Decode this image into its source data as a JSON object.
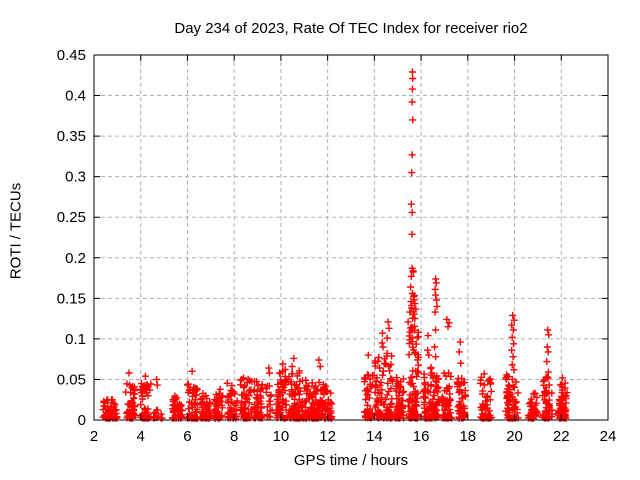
{
  "figure": {
    "background": "#ffffff"
  },
  "chart_data": {
    "type": "scatter",
    "title": "Day 234 of 2023, Rate Of TEC Index for receiver rio2",
    "xlabel": "GPS time / hours",
    "ylabel": "ROTI / TECUs",
    "xlim": [
      2,
      24
    ],
    "ylim": [
      0,
      0.45
    ],
    "xticks": [
      2,
      4,
      6,
      8,
      10,
      12,
      14,
      16,
      18,
      20,
      22,
      24
    ],
    "yticks": [
      0,
      0.05,
      0.1,
      0.15,
      0.2,
      0.25,
      0.3,
      0.35,
      0.4,
      0.45
    ],
    "ytick_labels": [
      "0",
      "0.05",
      "0.1",
      "0.15",
      "0.2",
      "0.25",
      "0.3",
      "0.35",
      "0.4",
      "0.45"
    ],
    "grid": "dashed",
    "grid_color": "#b0b0b0",
    "axis_color": "#000000",
    "legend": "none",
    "marker": {
      "glyph": "+",
      "color": "#ff0000",
      "size": 7,
      "stroke_width": 1.4
    },
    "clusters": [
      {
        "x0": 2.38,
        "x1": 2.98,
        "n": 55,
        "y_base": 0.002,
        "y_top": 0.026
      },
      {
        "x0": 3.36,
        "x1": 3.78,
        "n": 48,
        "y_base": 0.002,
        "y_top": 0.046
      },
      {
        "x0": 4.0,
        "x1": 4.43,
        "n": 48,
        "y_base": 0.002,
        "y_top": 0.046
      },
      {
        "x0": 4.56,
        "x1": 4.92,
        "n": 12,
        "y_base": 0.002,
        "y_top": 0.02
      },
      {
        "x0": 5.35,
        "x1": 5.78,
        "n": 42,
        "y_base": 0.002,
        "y_top": 0.03
      },
      {
        "x0": 6.0,
        "x1": 6.42,
        "n": 50,
        "y_base": 0.002,
        "y_top": 0.048
      },
      {
        "x0": 6.55,
        "x1": 6.99,
        "n": 42,
        "y_base": 0.002,
        "y_top": 0.034
      },
      {
        "x0": 7.15,
        "x1": 7.52,
        "n": 42,
        "y_base": 0.002,
        "y_top": 0.038
      },
      {
        "x0": 7.7,
        "x1": 8.12,
        "n": 48,
        "y_base": 0.002,
        "y_top": 0.046
      },
      {
        "x0": 8.28,
        "x1": 8.76,
        "n": 55,
        "y_base": 0.002,
        "y_top": 0.052
      },
      {
        "x0": 8.82,
        "x1": 9.2,
        "n": 48,
        "y_base": 0.002,
        "y_top": 0.048
      },
      {
        "x0": 9.38,
        "x1": 9.62,
        "n": 16,
        "y_base": 0.002,
        "y_top": 0.048
      },
      {
        "x0": 9.8,
        "x1": 10.3,
        "n": 60,
        "y_base": 0.002,
        "y_top": 0.064
      },
      {
        "x0": 10.35,
        "x1": 10.82,
        "n": 70,
        "y_base": 0.002,
        "y_top": 0.062
      },
      {
        "x0": 10.85,
        "x1": 11.42,
        "n": 75,
        "y_base": 0.002,
        "y_top": 0.052
      },
      {
        "x0": 11.45,
        "x1": 11.95,
        "n": 60,
        "y_base": 0.002,
        "y_top": 0.05
      },
      {
        "x0": 11.95,
        "x1": 12.17,
        "n": 22,
        "y_base": 0.002,
        "y_top": 0.036
      },
      {
        "x0": 13.58,
        "x1": 13.95,
        "n": 45,
        "y_base": 0.002,
        "y_top": 0.058
      },
      {
        "x0": 14.0,
        "x1": 14.47,
        "n": 55,
        "y_base": 0.002,
        "y_top": 0.078
      },
      {
        "x0": 14.5,
        "x1": 14.78,
        "n": 42,
        "y_base": 0.002,
        "y_top": 0.088
      },
      {
        "x0": 14.88,
        "x1": 15.25,
        "n": 58,
        "y_base": 0.002,
        "y_top": 0.054
      },
      {
        "x0": 15.45,
        "x1": 15.88,
        "n": 90,
        "y_base": 0.002,
        "y_top": 0.125
      },
      {
        "x0": 15.55,
        "x1": 15.78,
        "n": 10,
        "y_base": 0.125,
        "y_top": 0.19
      },
      {
        "x0": 16.1,
        "x1": 16.5,
        "n": 55,
        "y_base": 0.002,
        "y_top": 0.066
      },
      {
        "x0": 16.52,
        "x1": 16.78,
        "n": 42,
        "y_base": 0.002,
        "y_top": 0.058
      },
      {
        "x0": 16.9,
        "x1": 17.3,
        "n": 55,
        "y_base": 0.002,
        "y_top": 0.058
      },
      {
        "x0": 17.55,
        "x1": 17.9,
        "n": 45,
        "y_base": 0.002,
        "y_top": 0.052
      },
      {
        "x0": 18.55,
        "x1": 19.0,
        "n": 48,
        "y_base": 0.002,
        "y_top": 0.054
      },
      {
        "x0": 19.62,
        "x1": 20.15,
        "n": 70,
        "y_base": 0.002,
        "y_top": 0.058
      },
      {
        "x0": 20.6,
        "x1": 21.0,
        "n": 42,
        "y_base": 0.002,
        "y_top": 0.034
      },
      {
        "x0": 21.2,
        "x1": 21.6,
        "n": 48,
        "y_base": 0.002,
        "y_top": 0.055
      },
      {
        "x0": 21.88,
        "x1": 22.25,
        "n": 55,
        "y_base": 0.002,
        "y_top": 0.048
      }
    ],
    "outliers": [
      [
        3.5,
        0.058
      ],
      [
        4.2,
        0.054
      ],
      [
        4.68,
        0.05
      ],
      [
        4.71,
        0.043
      ],
      [
        6.2,
        0.06
      ],
      [
        9.48,
        0.064
      ],
      [
        9.51,
        0.058
      ],
      [
        10.08,
        0.069
      ],
      [
        10.55,
        0.076
      ],
      [
        10.48,
        0.066
      ],
      [
        11.62,
        0.074
      ],
      [
        11.68,
        0.066
      ],
      [
        13.74,
        0.08
      ],
      [
        14.35,
        0.107
      ],
      [
        14.33,
        0.095
      ],
      [
        14.37,
        0.09
      ],
      [
        14.59,
        0.121
      ],
      [
        14.63,
        0.113
      ],
      [
        14.55,
        0.101
      ],
      [
        15.63,
        0.429
      ],
      [
        15.64,
        0.421
      ],
      [
        15.63,
        0.408
      ],
      [
        15.62,
        0.392
      ],
      [
        15.64,
        0.37
      ],
      [
        15.62,
        0.327
      ],
      [
        15.6,
        0.305
      ],
      [
        15.58,
        0.266
      ],
      [
        15.62,
        0.256
      ],
      [
        15.61,
        0.229
      ],
      [
        15.62,
        0.187
      ],
      [
        15.66,
        0.184
      ],
      [
        15.58,
        0.177
      ],
      [
        15.55,
        0.164
      ],
      [
        15.63,
        0.156
      ],
      [
        15.68,
        0.152
      ],
      [
        15.57,
        0.146
      ],
      [
        15.6,
        0.141
      ],
      [
        15.52,
        0.133
      ],
      [
        16.3,
        0.104
      ],
      [
        16.28,
        0.086
      ],
      [
        16.33,
        0.08
      ],
      [
        16.62,
        0.174
      ],
      [
        16.65,
        0.169
      ],
      [
        16.6,
        0.161
      ],
      [
        16.62,
        0.154
      ],
      [
        16.66,
        0.148
      ],
      [
        16.68,
        0.14
      ],
      [
        16.6,
        0.133
      ],
      [
        16.62,
        0.111
      ],
      [
        16.58,
        0.09
      ],
      [
        16.62,
        0.078
      ],
      [
        17.1,
        0.124
      ],
      [
        17.2,
        0.12
      ],
      [
        17.15,
        0.115
      ],
      [
        17.68,
        0.096
      ],
      [
        17.63,
        0.084
      ],
      [
        17.7,
        0.07
      ],
      [
        18.7,
        0.057
      ],
      [
        19.92,
        0.129
      ],
      [
        19.98,
        0.123
      ],
      [
        19.88,
        0.117
      ],
      [
        19.95,
        0.111
      ],
      [
        19.9,
        0.102
      ],
      [
        19.96,
        0.094
      ],
      [
        19.88,
        0.086
      ],
      [
        19.94,
        0.078
      ],
      [
        19.9,
        0.068
      ],
      [
        19.97,
        0.062
      ],
      [
        21.42,
        0.111
      ],
      [
        21.46,
        0.105
      ],
      [
        21.4,
        0.09
      ],
      [
        21.44,
        0.084
      ],
      [
        21.38,
        0.072
      ],
      [
        21.45,
        0.059
      ],
      [
        22.05,
        0.052
      ]
    ]
  }
}
